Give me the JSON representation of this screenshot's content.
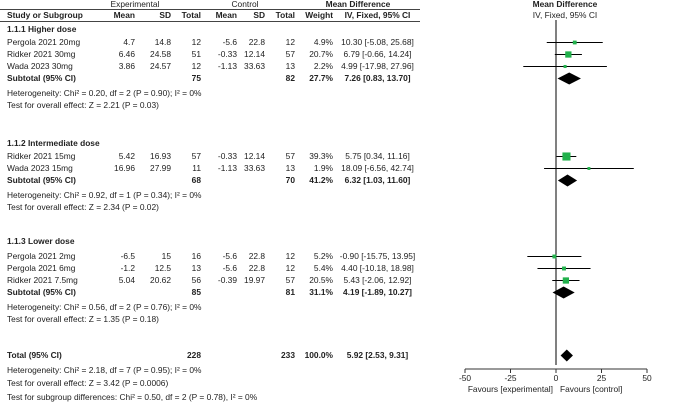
{
  "headers": {
    "study": "Study or Subgroup",
    "experimental": "Experimental",
    "control": "Control",
    "mean": "Mean",
    "sd": "SD",
    "total": "Total",
    "weight": "Weight",
    "md_title": "Mean Difference",
    "md_method": "IV, Fixed, 95% CI"
  },
  "groups": [
    {
      "title": "1.1.1 Higher dose",
      "studies": [
        {
          "name": "Pergola 2021 20mg",
          "e_mean": "4.7",
          "e_sd": "14.8",
          "e_total": "12",
          "c_mean": "-5.6",
          "c_sd": "22.8",
          "c_total": "12",
          "weight": "4.9%",
          "ci_text": "10.30 [-5.08, 25.68]"
        },
        {
          "name": "Ridker 2021 30mg",
          "e_mean": "6.46",
          "e_sd": "24.58",
          "e_total": "51",
          "c_mean": "-0.33",
          "c_sd": "12.14",
          "c_total": "57",
          "weight": "20.7%",
          "ci_text": "6.79 [-0.66, 14.24]"
        },
        {
          "name": "Wada 2023 30mg",
          "e_mean": "3.86",
          "e_sd": "24.57",
          "e_total": "12",
          "c_mean": "-1.13",
          "c_sd": "33.63",
          "c_total": "13",
          "weight": "2.2%",
          "ci_text": "4.99 [-17.98, 27.96]"
        }
      ],
      "subtotal": {
        "label": "Subtotal (95% CI)",
        "e_total": "75",
        "c_total": "82",
        "weight": "27.7%",
        "ci_text": "7.26 [0.83, 13.70]"
      },
      "heterogeneity": "Heterogeneity: Chi² = 0.20, df = 2 (P = 0.90); I² = 0%",
      "overall": "Test for overall effect: Z = 2.21 (P = 0.03)"
    },
    {
      "title": "1.1.2 Intermediate dose",
      "studies": [
        {
          "name": "Ridker 2021 15mg",
          "e_mean": "5.42",
          "e_sd": "16.93",
          "e_total": "57",
          "c_mean": "-0.33",
          "c_sd": "12.14",
          "c_total": "57",
          "weight": "39.3%",
          "ci_text": "5.75 [0.34, 11.16]"
        },
        {
          "name": "Wada 2023 15mg",
          "e_mean": "16.96",
          "e_sd": "27.99",
          "e_total": "11",
          "c_mean": "-1.13",
          "c_sd": "33.63",
          "c_total": "13",
          "weight": "1.9%",
          "ci_text": "18.09 [-6.56, 42.74]"
        }
      ],
      "subtotal": {
        "label": "Subtotal (95% CI)",
        "e_total": "68",
        "c_total": "70",
        "weight": "41.2%",
        "ci_text": "6.32 [1.03, 11.60]"
      },
      "heterogeneity": "Heterogeneity: Chi² = 0.92, df = 1 (P = 0.34); I² = 0%",
      "overall": "Test for overall effect: Z = 2.34 (P = 0.02)"
    },
    {
      "title": "1.1.3 Lower dose",
      "studies": [
        {
          "name": "Pergola 2021 2mg",
          "e_mean": "-6.5",
          "e_sd": "15",
          "e_total": "16",
          "c_mean": "-5.6",
          "c_sd": "22.8",
          "c_total": "12",
          "weight": "5.2%",
          "ci_text": "-0.90 [-15.75, 13.95]"
        },
        {
          "name": "Pergola 2021 6mg",
          "e_mean": "-1.2",
          "e_sd": "12.5",
          "e_total": "13",
          "c_mean": "-5.6",
          "c_sd": "22.8",
          "c_total": "12",
          "weight": "5.4%",
          "ci_text": "4.40 [-10.18, 18.98]"
        },
        {
          "name": "Ridker 2021 7.5mg",
          "e_mean": "5.04",
          "e_sd": "20.62",
          "e_total": "56",
          "c_mean": "-0.39",
          "c_sd": "19.97",
          "c_total": "57",
          "weight": "20.5%",
          "ci_text": "5.43 [-2.06, 12.92]"
        }
      ],
      "subtotal": {
        "label": "Subtotal (95% CI)",
        "e_total": "85",
        "c_total": "81",
        "weight": "31.1%",
        "ci_text": "4.19 [-1.89, 10.27]"
      },
      "heterogeneity": "Heterogeneity: Chi² = 0.56, df = 2 (P = 0.76); I² = 0%",
      "overall": "Test for overall effect: Z = 1.35 (P = 0.18)"
    }
  ],
  "total": {
    "label": "Total (95% CI)",
    "e_total": "228",
    "c_total": "233",
    "weight": "100.0%",
    "ci_text": "5.92 [2.53, 9.31]"
  },
  "footer": {
    "heterogeneity": "Heterogeneity: Chi² = 2.18, df = 7 (P = 0.95); I² = 0%",
    "overall": "Test for overall effect: Z = 3.42 (P = 0.0006)",
    "subgroup": "Test for subgroup differences: Chi² = 0.50, df = 2 (P = 0.78), I² = 0%"
  },
  "colors": {
    "square": "#22b14c",
    "diamond": "#000000",
    "line": "#000000"
  },
  "chart_data": {
    "type": "forest",
    "xlim": [
      -50,
      50
    ],
    "ticks": [
      -50,
      -25,
      0,
      25,
      50
    ],
    "favours_left": "Favours [experimental]",
    "favours_right": "Favours [control]",
    "studies": [
      {
        "name": "Pergola 2021 20mg",
        "md": 10.3,
        "lo": -5.08,
        "hi": 25.68,
        "weight": 4.9
      },
      {
        "name": "Ridker 2021 30mg",
        "md": 6.79,
        "lo": -0.66,
        "hi": 14.24,
        "weight": 20.7
      },
      {
        "name": "Wada 2023 30mg",
        "md": 4.99,
        "lo": -17.98,
        "hi": 27.96,
        "weight": 2.2
      },
      {
        "name": "Ridker 2021 15mg",
        "md": 5.75,
        "lo": 0.34,
        "hi": 11.16,
        "weight": 39.3
      },
      {
        "name": "Wada 2023 15mg",
        "md": 18.09,
        "lo": -6.56,
        "hi": 42.74,
        "weight": 1.9
      },
      {
        "name": "Pergola 2021 2mg",
        "md": -0.9,
        "lo": -15.75,
        "hi": 13.95,
        "weight": 5.2
      },
      {
        "name": "Pergola 2021 6mg",
        "md": 4.4,
        "lo": -10.18,
        "hi": 18.98,
        "weight": 5.4
      },
      {
        "name": "Ridker 2021 7.5mg",
        "md": 5.43,
        "lo": -2.06,
        "hi": 12.92,
        "weight": 20.5
      }
    ],
    "subtotals": [
      {
        "name": "1.1.1 Higher dose",
        "md": 7.26,
        "lo": 0.83,
        "hi": 13.7
      },
      {
        "name": "1.1.2 Intermediate dose",
        "md": 6.32,
        "lo": 1.03,
        "hi": 11.6
      },
      {
        "name": "1.1.3 Lower dose",
        "md": 4.19,
        "lo": -1.89,
        "hi": 10.27
      }
    ],
    "total": {
      "md": 5.92,
      "lo": 2.53,
      "hi": 9.31
    }
  }
}
